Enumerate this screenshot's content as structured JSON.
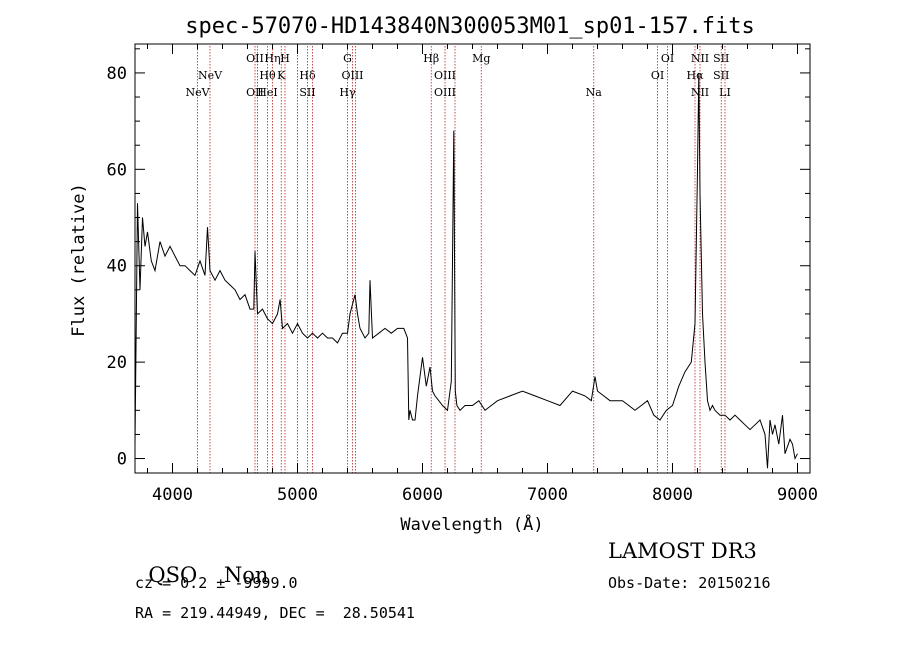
{
  "chart_data": {
    "type": "line",
    "title": "spec-57070-HD143840N300053M01_sp01-157.fits",
    "xlabel": "Wavelength (Å)",
    "ylabel": "Flux (relative)",
    "xlim": [
      3700,
      9100
    ],
    "ylim": [
      -3,
      86
    ],
    "x_ticks": [
      4000,
      5000,
      6000,
      7000,
      8000,
      9000
    ],
    "y_ticks": [
      0,
      20,
      40,
      60,
      80
    ],
    "line_color": "#000000",
    "marker_color": "#b22222",
    "series": [
      {
        "x": [
          3700,
          3720,
          3740,
          3760,
          3780,
          3800,
          3830,
          3860,
          3900,
          3940,
          3980,
          4020,
          4060,
          4100,
          4140,
          4180,
          4220,
          4260,
          4280,
          4300,
          4340,
          4380,
          4420,
          4460,
          4500,
          4540,
          4580,
          4620,
          4650,
          4660,
          4680,
          4720,
          4760,
          4800,
          4840,
          4861,
          4880,
          4920,
          4960,
          5000,
          5040,
          5080,
          5120,
          5160,
          5200,
          5240,
          5280,
          5320,
          5360,
          5400,
          5420,
          5440,
          5460,
          5480,
          5500,
          5540,
          5570,
          5580,
          5600,
          5650,
          5700,
          5750,
          5800,
          5850,
          5880,
          5890,
          5900,
          5920,
          5940,
          5960,
          5980,
          6000,
          6030,
          6060,
          6080,
          6100,
          6130,
          6160,
          6200,
          6230,
          6250,
          6262,
          6275,
          6300,
          6340,
          6400,
          6450,
          6500,
          6550,
          6600,
          6700,
          6800,
          6900,
          7000,
          7100,
          7200,
          7300,
          7350,
          7380,
          7400,
          7450,
          7500,
          7600,
          7700,
          7750,
          7800,
          7850,
          7900,
          7950,
          8000,
          8050,
          8100,
          8150,
          8180,
          8200,
          8210,
          8220,
          8240,
          8260,
          8280,
          8300,
          8320,
          8340,
          8380,
          8420,
          8460,
          8500,
          8540,
          8580,
          8620,
          8660,
          8700,
          8740,
          8760,
          8780,
          8800,
          8820,
          8850,
          8880,
          8900,
          8940,
          8960,
          8980,
          9000
        ],
        "y": [
          3,
          53,
          35,
          50,
          44,
          47,
          41,
          39,
          45,
          42,
          44,
          42,
          40,
          40,
          39,
          38,
          41,
          38,
          48,
          39,
          37,
          39,
          37,
          36,
          35,
          33,
          34,
          31,
          31,
          43,
          30,
          31,
          29,
          28,
          30,
          33,
          27,
          28,
          26,
          28,
          26,
          25,
          26,
          25,
          26,
          25,
          25,
          24,
          26,
          26,
          30,
          32,
          34,
          30,
          27,
          25,
          26,
          37,
          25,
          26,
          27,
          26,
          27,
          27,
          25,
          8,
          10,
          8,
          8,
          13,
          17,
          21,
          15,
          19,
          14,
          13,
          12,
          11,
          10,
          16,
          68,
          14,
          11,
          10,
          11,
          11,
          12,
          10,
          11,
          12,
          13,
          14,
          13,
          12,
          11,
          14,
          13,
          12,
          17,
          14,
          13,
          12,
          12,
          10,
          11,
          12,
          9,
          8,
          10,
          11,
          15,
          18,
          20,
          28,
          60,
          80,
          55,
          30,
          20,
          12,
          10,
          11,
          10,
          9,
          9,
          8,
          9,
          8,
          7,
          6,
          7,
          8,
          5,
          -2,
          8,
          5,
          7,
          3,
          9,
          1,
          4,
          3,
          0,
          1
        ]
      }
    ],
    "lines": [
      {
        "x": 4200,
        "labels": [
          "NeV"
        ],
        "pos": "low"
      },
      {
        "x": 4300,
        "labels": [
          "NeV"
        ],
        "pos": "mid"
      },
      {
        "x": 4660,
        "labels": [
          "OII",
          "OII"
        ],
        "pos": "high-low"
      },
      {
        "x": 4680,
        "labels": [],
        "pos": "none"
      },
      {
        "x": 4760,
        "labels": [
          "Hθ",
          "HeI"
        ],
        "pos": "mid-low"
      },
      {
        "x": 4800,
        "labels": [
          "Hη"
        ],
        "pos": "high"
      },
      {
        "x": 4870,
        "labels": [
          "K"
        ],
        "pos": "mid"
      },
      {
        "x": 4900,
        "labels": [
          "H"
        ],
        "pos": "high"
      },
      {
        "x": 5000,
        "labels": [],
        "pos": "none"
      },
      {
        "x": 5080,
        "labels": [
          "Hδ",
          "SII"
        ],
        "pos": "mid-low"
      },
      {
        "x": 5120,
        "labels": [],
        "pos": "none"
      },
      {
        "x": 5400,
        "labels": [
          "G",
          "Hγ"
        ],
        "pos": "high-low"
      },
      {
        "x": 5440,
        "labels": [
          "OIII"
        ],
        "pos": "mid"
      },
      {
        "x": 5465,
        "labels": [],
        "pos": "none"
      },
      {
        "x": 6070,
        "labels": [
          "Hβ"
        ],
        "pos": "high"
      },
      {
        "x": 6180,
        "labels": [
          "OIII",
          "OIII"
        ],
        "pos": "mid-low"
      },
      {
        "x": 6260,
        "labels": [],
        "pos": "none"
      },
      {
        "x": 6470,
        "labels": [
          "Mg"
        ],
        "pos": "high"
      },
      {
        "x": 7370,
        "labels": [
          "Na"
        ],
        "pos": "low"
      },
      {
        "x": 7880,
        "labels": [
          "OI"
        ],
        "pos": "mid"
      },
      {
        "x": 7960,
        "labels": [
          "OI"
        ],
        "pos": "high"
      },
      {
        "x": 8180,
        "labels": [
          "Hα"
        ],
        "pos": "mid"
      },
      {
        "x": 8220,
        "labels": [
          "NII",
          "NII"
        ],
        "pos": "high-low"
      },
      {
        "x": 8390,
        "labels": [
          "SII",
          "SII"
        ],
        "pos": "high-mid"
      },
      {
        "x": 8420,
        "labels": [
          "LI"
        ],
        "pos": "low"
      }
    ]
  },
  "info": {
    "class": "QSO",
    "subclass": "Non",
    "cz": "cz = 0.2 ± -9999.0",
    "radec": "RA = 219.44949, DEC =  28.50541",
    "survey": "LAMOST DR3",
    "obsdate": "Obs-Date: 20150216"
  }
}
